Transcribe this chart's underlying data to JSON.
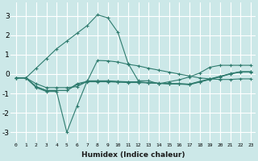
{
  "xlabel": "Humidex (Indice chaleur)",
  "background_color": "#cce8e8",
  "grid_color": "#ffffff",
  "line_color": "#2e7b6e",
  "xlim": [
    -0.5,
    23.5
  ],
  "ylim": [
    -3.5,
    3.7
  ],
  "xticks": [
    0,
    1,
    2,
    3,
    4,
    5,
    6,
    7,
    8,
    9,
    10,
    11,
    12,
    13,
    14,
    15,
    16,
    17,
    18,
    19,
    20,
    21,
    22,
    23
  ],
  "yticks": [
    -3,
    -2,
    -1,
    0,
    1,
    2,
    3
  ],
  "lines": [
    {
      "x": [
        0,
        1,
        2,
        3,
        4,
        5,
        6,
        7,
        8,
        9,
        10,
        11,
        12,
        13,
        14,
        15,
        16,
        17,
        18,
        19,
        20,
        21,
        22,
        23
      ],
      "y": [
        -0.2,
        -0.2,
        0.3,
        0.8,
        1.3,
        1.7,
        2.1,
        2.5,
        3.05,
        2.9,
        2.15,
        0.55,
        -0.35,
        -0.35,
        -0.5,
        -0.4,
        -0.3,
        -0.15,
        0.05,
        0.35,
        0.45,
        0.45,
        0.45,
        0.45
      ]
    },
    {
      "x": [
        0,
        1,
        2,
        3,
        4,
        5,
        6,
        7,
        8,
        9,
        10,
        11,
        12,
        13,
        14,
        15,
        16,
        17,
        18,
        19,
        20,
        21,
        22,
        23
      ],
      "y": [
        -0.2,
        -0.2,
        -0.7,
        -0.9,
        -0.9,
        -3.0,
        -1.65,
        -0.35,
        -0.35,
        -0.35,
        -0.38,
        -0.4,
        -0.4,
        -0.45,
        -0.48,
        -0.5,
        -0.52,
        -0.55,
        -0.42,
        -0.28,
        -0.15,
        0.0,
        0.1,
        0.1
      ]
    },
    {
      "x": [
        0,
        1,
        2,
        3,
        4,
        5,
        6,
        7,
        8,
        9,
        10,
        11,
        12,
        13,
        14,
        15,
        16,
        17,
        18,
        19,
        20,
        21,
        22,
        23
      ],
      "y": [
        -0.2,
        -0.2,
        -0.65,
        -0.85,
        -0.85,
        -0.85,
        -0.5,
        -0.38,
        -0.38,
        -0.38,
        -0.4,
        -0.42,
        -0.42,
        -0.45,
        -0.47,
        -0.5,
        -0.5,
        -0.52,
        -0.38,
        -0.25,
        -0.12,
        0.02,
        0.12,
        0.12
      ]
    },
    {
      "x": [
        0,
        1,
        2,
        3,
        4,
        5,
        6,
        7,
        8,
        9,
        10,
        11,
        12,
        13,
        14,
        15,
        16,
        17,
        18,
        19,
        20,
        21,
        22,
        23
      ],
      "y": [
        -0.2,
        -0.2,
        -0.65,
        -0.85,
        -0.85,
        -0.85,
        -0.55,
        -0.4,
        -0.4,
        -0.4,
        -0.42,
        -0.44,
        -0.44,
        -0.46,
        -0.48,
        -0.5,
        -0.5,
        -0.53,
        -0.4,
        -0.27,
        -0.13,
        0.01,
        0.11,
        0.11
      ]
    },
    {
      "x": [
        0,
        1,
        2,
        3,
        4,
        5,
        6,
        7,
        8,
        9,
        10,
        11,
        12,
        13,
        14,
        15,
        16,
        17,
        18,
        19,
        20,
        21,
        22,
        23
      ],
      "y": [
        -0.2,
        -0.2,
        -0.5,
        -0.7,
        -0.7,
        -0.7,
        -0.65,
        -0.38,
        0.7,
        0.68,
        0.62,
        0.5,
        0.42,
        0.3,
        0.2,
        0.1,
        0.0,
        -0.1,
        -0.2,
        -0.25,
        -0.28,
        -0.28,
        -0.25,
        -0.25
      ]
    }
  ]
}
